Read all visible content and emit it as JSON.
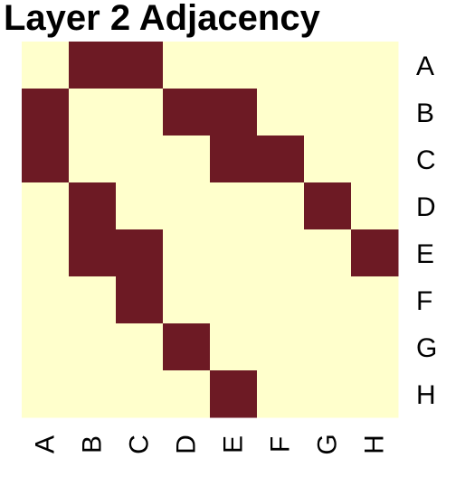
{
  "chart_data": {
    "type": "heatmap",
    "title": "Layer 2 Adjacency",
    "xlabel": "",
    "ylabel": "",
    "x_categories": [
      "A",
      "B",
      "C",
      "D",
      "E",
      "F",
      "G",
      "H"
    ],
    "y_categories": [
      "A",
      "B",
      "C",
      "D",
      "E",
      "F",
      "G",
      "H"
    ],
    "values": [
      [
        0,
        1,
        1,
        0,
        0,
        0,
        0,
        0
      ],
      [
        1,
        0,
        0,
        1,
        1,
        0,
        0,
        0
      ],
      [
        1,
        0,
        0,
        0,
        1,
        1,
        0,
        0
      ],
      [
        0,
        1,
        0,
        0,
        0,
        0,
        1,
        0
      ],
      [
        0,
        1,
        1,
        0,
        0,
        0,
        0,
        1
      ],
      [
        0,
        0,
        1,
        0,
        0,
        0,
        0,
        0
      ],
      [
        0,
        0,
        0,
        1,
        0,
        0,
        0,
        0
      ],
      [
        0,
        0,
        0,
        0,
        1,
        0,
        0,
        0
      ]
    ],
    "x_tick_orientation": "rotated",
    "y_tick_position": "right",
    "grid": false,
    "legend": "none",
    "colors": {
      "zero": "#FFFFCC",
      "one": "#6D1A24",
      "tick_text": "#000000",
      "title_text": "#000000"
    }
  }
}
